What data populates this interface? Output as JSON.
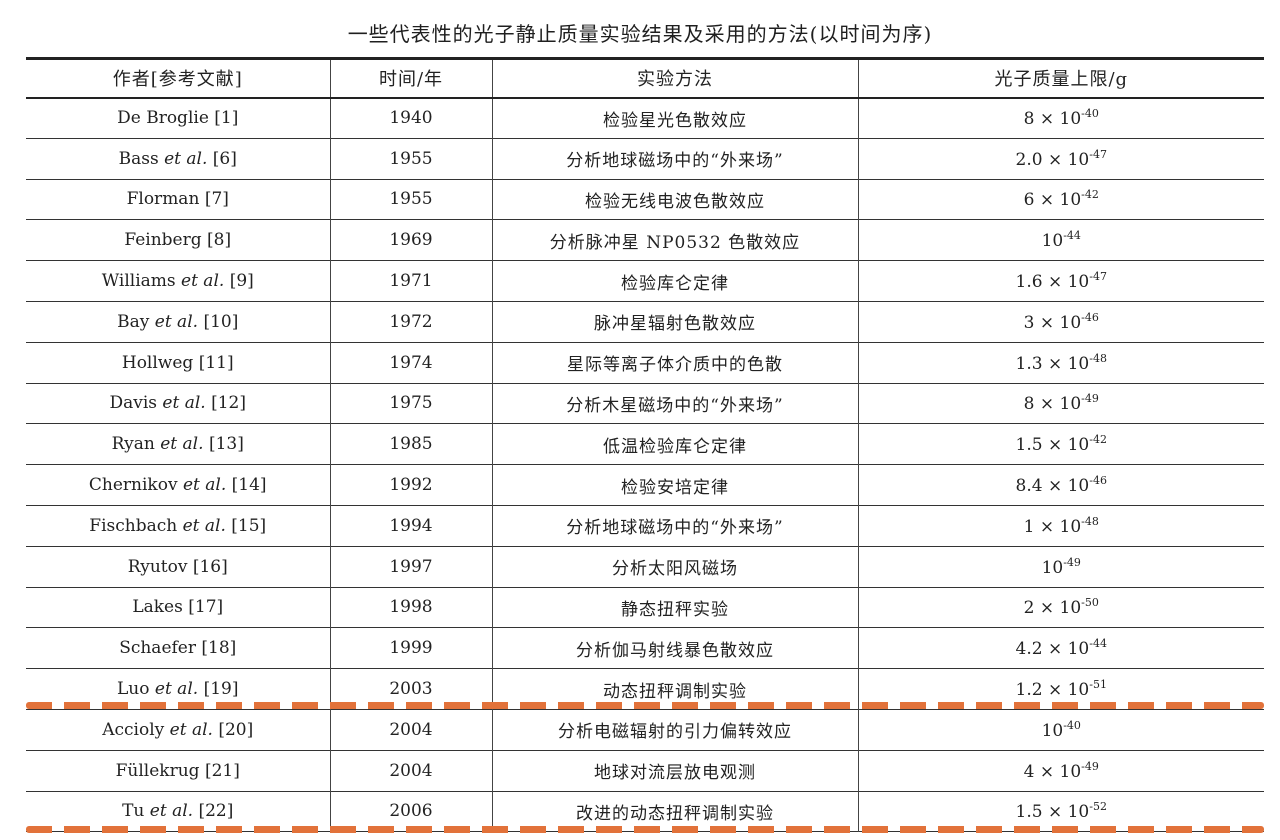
{
  "title": "一些代表性的光子静止质量实验结果及采用的方法(以时间为序)",
  "columns": {
    "author": "作者[参考文献]",
    "year": "时间/年",
    "method": "实验方法",
    "mass": "光子质量上限/g"
  },
  "rows": [
    {
      "author": "De Broglie",
      "etal": "",
      "ref": "[1]",
      "year": "1940",
      "method": "检验星光色散效应",
      "mass_coef": "8 × 10",
      "mass_exp": "-40"
    },
    {
      "author": "Bass",
      "etal": "et al.",
      "ref": "[6]",
      "year": "1955",
      "method": "分析地球磁场中的“外来场”",
      "mass_coef": "2.0 × 10",
      "mass_exp": "-47"
    },
    {
      "author": "Florman",
      "etal": "",
      "ref": "[7]",
      "year": "1955",
      "method": "检验无线电波色散效应",
      "mass_coef": "6 × 10",
      "mass_exp": "-42"
    },
    {
      "author": "Feinberg",
      "etal": "",
      "ref": "[8]",
      "year": "1969",
      "method": "分析脉冲星 NP0532 色散效应",
      "mass_coef": "10",
      "mass_exp": "-44"
    },
    {
      "author": "Williams",
      "etal": "et al.",
      "ref": "[9]",
      "year": "1971",
      "method": "检验库仑定律",
      "mass_coef": "1.6 × 10",
      "mass_exp": "-47"
    },
    {
      "author": "Bay",
      "etal": "et al.",
      "ref": "[10]",
      "year": "1972",
      "method": "脉冲星辐射色散效应",
      "mass_coef": "3 × 10",
      "mass_exp": "-46"
    },
    {
      "author": "Hollweg",
      "etal": "",
      "ref": "[11]",
      "year": "1974",
      "method": "星际等离子体介质中的色散",
      "mass_coef": "1.3 × 10",
      "mass_exp": "-48"
    },
    {
      "author": "Davis",
      "etal": "et al.",
      "ref": "[12]",
      "year": "1975",
      "method": "分析木星磁场中的“外来场”",
      "mass_coef": "8 × 10",
      "mass_exp": "-49"
    },
    {
      "author": "Ryan",
      "etal": "et al.",
      "ref": "[13]",
      "year": "1985",
      "method": "低温检验库仑定律",
      "mass_coef": "1.5 × 10",
      "mass_exp": "-42"
    },
    {
      "author": "Chernikov",
      "etal": "et al.",
      "ref": "[14]",
      "year": "1992",
      "method": "检验安培定律",
      "mass_coef": "8.4 × 10",
      "mass_exp": "-46"
    },
    {
      "author": "Fischbach",
      "etal": "et al.",
      "ref": "[15]",
      "year": "1994",
      "method": "分析地球磁场中的“外来场”",
      "mass_coef": "1 × 10",
      "mass_exp": "-48"
    },
    {
      "author": "Ryutov",
      "etal": "",
      "ref": "[16]",
      "year": "1997",
      "method": "分析太阳风磁场",
      "mass_coef": "10",
      "mass_exp": "-49"
    },
    {
      "author": "Lakes",
      "etal": "",
      "ref": "[17]",
      "year": "1998",
      "method": "静态扭秤实验",
      "mass_coef": "2 × 10",
      "mass_exp": "-50"
    },
    {
      "author": "Schaefer",
      "etal": "",
      "ref": "[18]",
      "year": "1999",
      "method": "分析伽马射线暴色散效应",
      "mass_coef": "4.2 × 10",
      "mass_exp": "-44"
    },
    {
      "author": "Luo",
      "etal": "et al.",
      "ref": "[19]",
      "year": "2003",
      "method": "动态扭秤调制实验",
      "mass_coef": "1.2 × 10",
      "mass_exp": "-51"
    },
    {
      "author": "Accioly",
      "etal": "et al.",
      "ref": "[20]",
      "year": "2004",
      "method": "分析电磁辐射的引力偏转效应",
      "mass_coef": "10",
      "mass_exp": "-40"
    },
    {
      "author": "Füllekrug",
      "etal": "",
      "ref": "[21]",
      "year": "2004",
      "method": "地球对流层放电观测",
      "mass_coef": "4 × 10",
      "mass_exp": "-49"
    },
    {
      "author": "Tu",
      "etal": "et al.",
      "ref": "[22]",
      "year": "2006",
      "method": "改进的动态扭秤调制实验",
      "mass_coef": "1.5 × 10",
      "mass_exp": "-52"
    }
  ],
  "colors": {
    "highlight_dashes": "#e2723a",
    "rule_lines": "#222222"
  }
}
